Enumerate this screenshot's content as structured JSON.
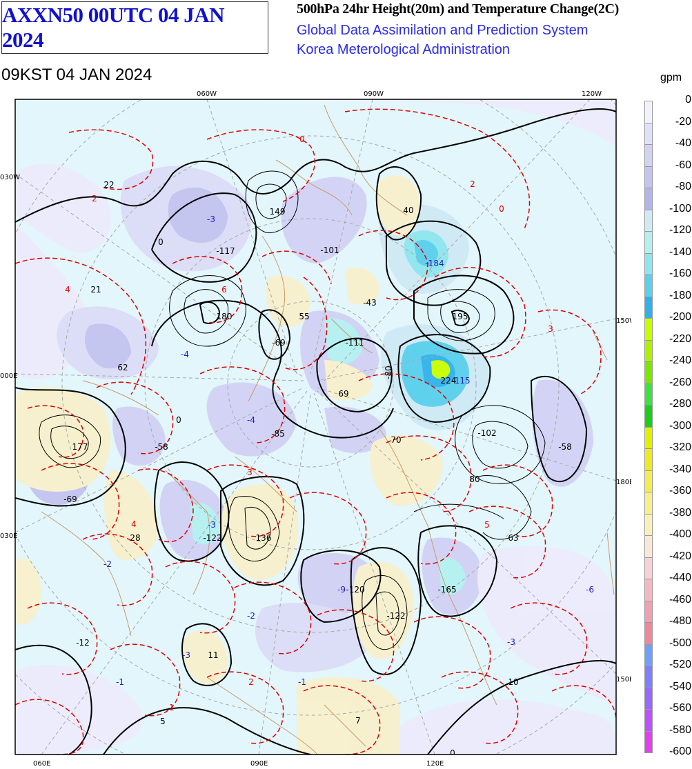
{
  "header": {
    "product": "AXXN50 00UTC 04 JAN 2024",
    "title": "500hPa 24hr Height(20m) and Temperature Change(2C)",
    "system": "Global Data Assimilation and Prediction System",
    "agency": "Korea Meterological Administration",
    "valid": "09KST 04 JAN 2024"
  },
  "grid_labels": {
    "top": [
      "060W",
      "090W",
      "120W"
    ],
    "bottom": [
      "060E",
      "090E",
      "120E"
    ],
    "left": [
      "030W",
      "000E",
      "030E"
    ],
    "right": [
      "150W",
      "180E",
      "150E"
    ]
  },
  "height_change_values": [
    "22",
    "-3",
    "-117",
    "149",
    "-101",
    "40",
    "-184",
    "21",
    "180",
    "55",
    "-43",
    "195",
    "3",
    "62",
    "-4",
    "-69",
    "-111",
    "-80",
    "224",
    "-115",
    "69",
    "-4",
    "-85",
    "177",
    "-58",
    "-102",
    "-58",
    "70",
    "80",
    "-69",
    "-3",
    "-122",
    "136",
    "28",
    "63",
    "-2",
    "-9",
    "-120",
    "-165",
    "-12",
    "-122",
    "-2",
    "-6",
    "-3",
    "11",
    "-1",
    "-3",
    "-1",
    "5",
    "7",
    "10",
    "2",
    "2",
    "4",
    "4",
    "6",
    "0",
    "0",
    "0",
    "0",
    "0",
    "5",
    "3",
    "1",
    "2"
  ],
  "legend": {
    "unit": "gpm",
    "colors": [
      "#f2f2ff",
      "#e0e0fa",
      "#d2d2f5",
      "#c4c4f0",
      "#b4b4eb",
      "#cfeaf4",
      "#b4f0f0",
      "#8ee6ee",
      "#5ad0ec",
      "#2eb2ec",
      "#c8ff00",
      "#aef000",
      "#78e800",
      "#40e040",
      "#18d018",
      "#e0f000",
      "#f0e820",
      "#f4ec50",
      "#f6f088",
      "#f8f0b8",
      "#fae8d6",
      "#f8d0d8",
      "#f4b8c4",
      "#f0a0b0",
      "#ec8898",
      "#6ea0ff",
      "#8080ff",
      "#9868ff",
      "#c050ff",
      "#e040f0"
    ],
    "labels": [
      "0",
      "-20",
      "-40",
      "-60",
      "-80",
      "-100",
      "-120",
      "-140",
      "-160",
      "-180",
      "-200",
      "-220",
      "-240",
      "-260",
      "-280",
      "-300",
      "-320",
      "-340",
      "-360",
      "-380",
      "-400",
      "-420",
      "-440",
      "-460",
      "-480",
      "-500",
      "-520",
      "-540",
      "-560",
      "-580",
      "-600"
    ]
  }
}
